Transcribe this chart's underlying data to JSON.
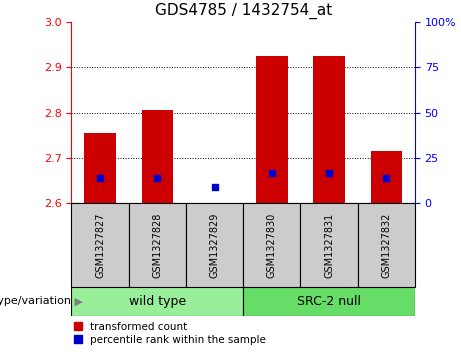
{
  "title": "GDS4785 / 1432754_at",
  "samples": [
    "GSM1327827",
    "GSM1327828",
    "GSM1327829",
    "GSM1327830",
    "GSM1327831",
    "GSM1327832"
  ],
  "bar_values": [
    2.755,
    2.805,
    2.601,
    2.925,
    2.925,
    2.715
  ],
  "blue_dot_values": [
    2.655,
    2.655,
    2.635,
    2.667,
    2.667,
    2.655
  ],
  "bar_bottom": 2.6,
  "ylim_left": [
    2.6,
    3.0
  ],
  "ylim_right": [
    0,
    100
  ],
  "yticks_left": [
    2.6,
    2.7,
    2.8,
    2.9,
    3.0
  ],
  "yticks_right": [
    0,
    25,
    50,
    75,
    100
  ],
  "ytick_labels_right": [
    "0",
    "25",
    "50",
    "75",
    "100%"
  ],
  "bar_color": "#cc0000",
  "dot_color": "#0000cc",
  "wild_type_label": "wild type",
  "src2_null_label": "SRC-2 null",
  "group_bg_color_wt": "#99ee99",
  "group_bg_color_src": "#66dd66",
  "sample_box_color": "#cccccc",
  "genotype_label": "genotype/variation",
  "legend_red_label": "transformed count",
  "legend_blue_label": "percentile rank within the sample",
  "title_fontsize": 11,
  "tick_fontsize": 8,
  "sample_fontsize": 7,
  "group_fontsize": 9,
  "legend_fontsize": 7.5,
  "genotype_fontsize": 8
}
